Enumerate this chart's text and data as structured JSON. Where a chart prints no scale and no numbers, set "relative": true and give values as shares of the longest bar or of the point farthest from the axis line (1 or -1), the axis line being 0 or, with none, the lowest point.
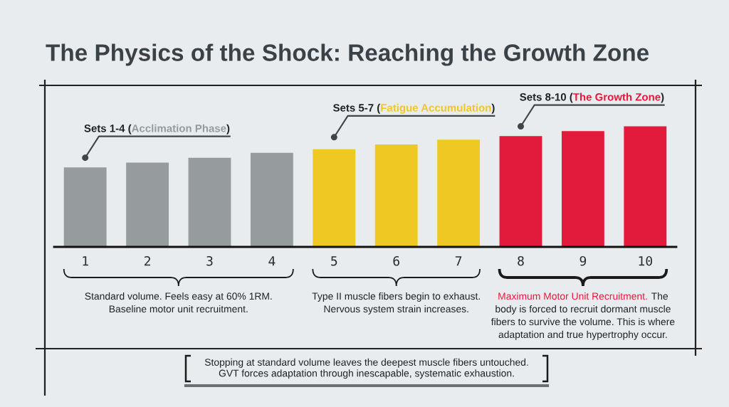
{
  "chart_data": {
    "type": "bar",
    "title": "The Physics of the Shock: Reaching the Growth Zone",
    "categories": [
      "1",
      "2",
      "3",
      "4",
      "5",
      "6",
      "7",
      "8",
      "9",
      "10"
    ],
    "values": [
      0.66,
      0.7,
      0.74,
      0.78,
      0.81,
      0.85,
      0.89,
      0.92,
      0.96,
      1
    ],
    "colors": [
      "#969c9e",
      "#969c9e",
      "#969c9e",
      "#969c9e",
      "#efc823",
      "#efc823",
      "#efc823",
      "#e21a3c",
      "#e21a3c",
      "#e21a3c"
    ],
    "relative": true,
    "annotations": [
      {
        "text": "Sets 1-4 (Acclimation Phase)",
        "x": "1",
        "y": 0.74
      },
      {
        "text": "Sets 5-7 (Fatigue Accumulation)",
        "x": "5",
        "y": 0.91
      },
      {
        "text": "Sets 8-10 (The Growth Zone)",
        "x": "8",
        "y": 1.0
      },
      "Standard volume. Feels easy at 60% 1RM.\nBaseline motor unit recruitment.",
      "Type II muscle fibers begin to exhaust.\nNervous system strain increases.",
      "Maximum Motor Unit Recruitment. The\nbody is forced to recruit dormant muscle\nfibers to survive the volume. This is where\nadaptation and true hypertrophy occur.",
      "Stopping at standard volume leaves the deepest muscle fibers untouched.\nGVT forces adaptation through inescapable, systematic exhaustion."
    ]
  }
}
